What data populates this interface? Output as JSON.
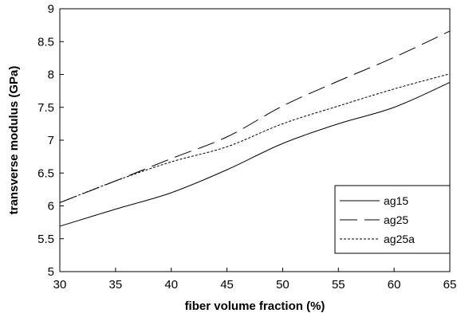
{
  "chart_data": {
    "type": "line",
    "xlabel": "fiber volume fraction (%)",
    "ylabel": "transverse modulus (GPa)",
    "xlim": [
      30,
      65
    ],
    "ylim": [
      5,
      9
    ],
    "xticks": [
      "30",
      "35",
      "40",
      "45",
      "50",
      "55",
      "60",
      "65"
    ],
    "yticks": [
      "5",
      "5.5",
      "6",
      "6.5",
      "7",
      "7.5",
      "8",
      "8.5",
      "9"
    ],
    "grid": false,
    "legend_position": "bottom-right",
    "series": [
      {
        "name": "ag15",
        "line_style": "solid",
        "x": [
          30,
          35,
          40,
          45,
          50,
          55,
          60,
          65
        ],
        "y": [
          5.69,
          5.95,
          6.2,
          6.55,
          6.95,
          7.25,
          7.5,
          7.88
        ]
      },
      {
        "name": "ag25",
        "line_style": "long-dash",
        "x": [
          30,
          35,
          40,
          45,
          50,
          55,
          60,
          65
        ],
        "y": [
          6.05,
          6.38,
          6.72,
          7.05,
          7.52,
          7.9,
          8.26,
          8.66
        ]
      },
      {
        "name": "ag25a",
        "line_style": "dotted",
        "x": [
          30,
          35,
          40,
          45,
          50,
          55,
          60,
          65
        ],
        "y": [
          6.05,
          6.38,
          6.67,
          6.9,
          7.25,
          7.52,
          7.78,
          8.01
        ]
      }
    ]
  }
}
